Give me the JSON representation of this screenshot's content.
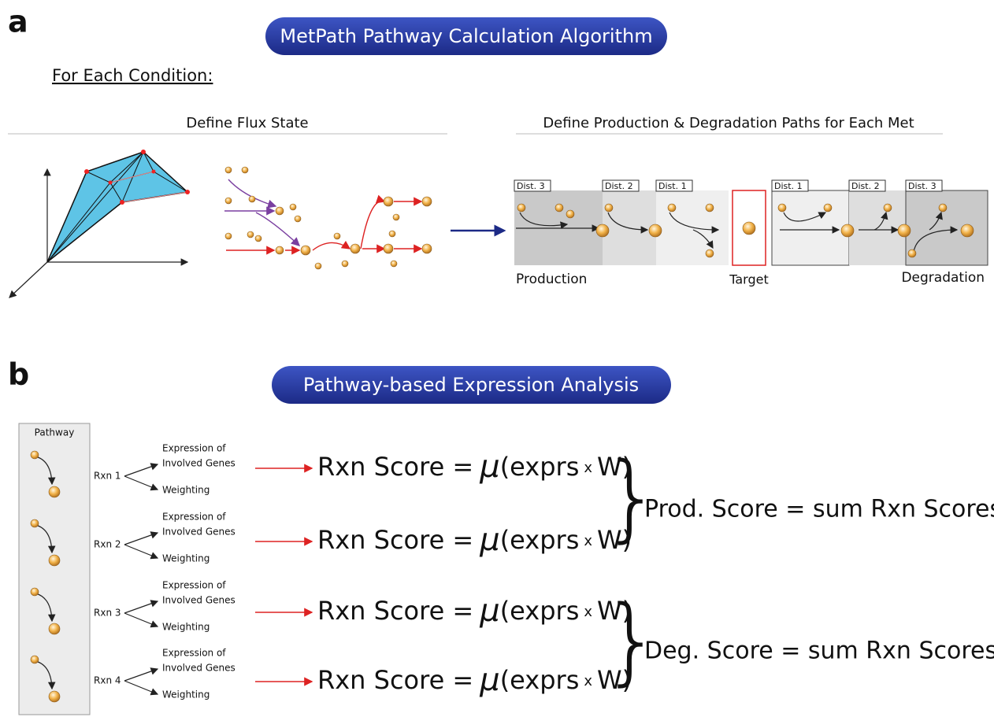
{
  "panel_a": {
    "label": "a",
    "title": "MetPath Pathway Calculation Algorithm",
    "subtitle": "For Each Condition:",
    "flux_heading": "Define Flux State",
    "paths_heading": "Define Production & Degradation Paths for Each Met",
    "production_tabs": [
      "Dist. 3",
      "Dist. 2",
      "Dist. 1"
    ],
    "degradation_tabs": [
      "Dist. 1",
      "Dist. 2",
      "Dist. 3"
    ],
    "production_label": "Production",
    "target_label": "Target",
    "degradation_label": "Degradation"
  },
  "panel_b": {
    "label": "b",
    "title": "Pathway-based Expression Analysis",
    "pathway_label": "Pathway",
    "reactions": [
      {
        "name": "Rxn 1",
        "expression": [
          "Expression of",
          "Involved Genes"
        ],
        "weighting": "Weighting",
        "score": [
          "Rxn Score =",
          "μ",
          "(exprs",
          "x",
          "W)"
        ]
      },
      {
        "name": "Rxn 2",
        "expression": [
          "Expression of",
          "Involved Genes"
        ],
        "weighting": "Weighting",
        "score": [
          "Rxn Score =",
          "μ",
          "(exprs",
          "x",
          "W)"
        ]
      },
      {
        "name": "Rxn 3",
        "expression": [
          "Expression of",
          "Involved Genes"
        ],
        "weighting": "Weighting",
        "score": [
          "Rxn Score =",
          "μ",
          "(exprs",
          "x",
          "W)"
        ]
      },
      {
        "name": "Rxn 4",
        "expression": [
          "Expression of",
          "Involved Genes"
        ],
        "weighting": "Weighting",
        "score": [
          "Rxn Score =",
          "μ",
          "(exprs",
          "x",
          "W)"
        ]
      }
    ],
    "sums": [
      "Prod. Score = sum Rxn Scores",
      "Deg. Score = sum Rxn Scores"
    ]
  }
}
